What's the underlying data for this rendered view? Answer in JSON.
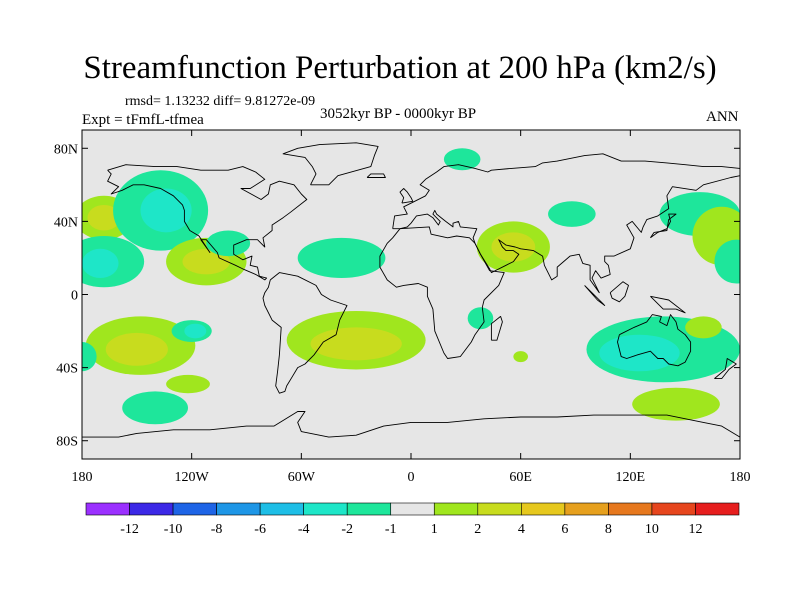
{
  "title": "Streamfunction Perturbation at 200 hPa (km2/s)",
  "stats": "rmsd= 1.13232 diff= 9.81272e-09",
  "period": "3052kyr BP - 0000kyr BP",
  "experiment": "Expt = tFmfL-tfmea",
  "season": "ANN",
  "map": {
    "lon_range": [
      -180,
      180
    ],
    "lat_range": [
      -90,
      90
    ],
    "x_ticks": [
      {
        "lon": -180,
        "label": "180"
      },
      {
        "lon": -120,
        "label": "120W"
      },
      {
        "lon": -60,
        "label": "60W"
      },
      {
        "lon": 0,
        "label": "0"
      },
      {
        "lon": 60,
        "label": "60E"
      },
      {
        "lon": 120,
        "label": "120E"
      },
      {
        "lon": 180,
        "label": "180"
      }
    ],
    "y_ticks": [
      {
        "lat": 80,
        "label": "80N"
      },
      {
        "lat": 40,
        "label": "40N"
      },
      {
        "lat": 0,
        "label": "0"
      },
      {
        "lat": -40,
        "label": "40S"
      },
      {
        "lat": -80,
        "label": "80S"
      }
    ],
    "background_color": "#e6e6e6"
  },
  "colorbar": {
    "colors": [
      "#9b30ff",
      "#3c28e6",
      "#1e64e6",
      "#1e96e6",
      "#1ebee6",
      "#1ee6c8",
      "#1ee69b",
      "#e6e6e6",
      "#a0e61e",
      "#c8dc1e",
      "#e6c81e",
      "#e6a01e",
      "#e6781e",
      "#e6461e",
      "#e61e1e"
    ],
    "labels": [
      "-12",
      "-10",
      "-8",
      "-6",
      "-4",
      "-2",
      "-1",
      "1",
      "2",
      "4",
      "6",
      "8",
      "10",
      "12"
    ]
  },
  "anomalies": [
    {
      "name": "pos-npac-west",
      "lon": -168,
      "lat": 42,
      "rx": 16,
      "ry": 12,
      "level": 2
    },
    {
      "name": "pos-npac-west-core",
      "lon": -168,
      "lat": 42,
      "rx": 9,
      "ry": 7,
      "level": 4
    },
    {
      "name": "neg-npac-center",
      "lon": -137,
      "lat": 46,
      "rx": 26,
      "ry": 22,
      "level": -1
    },
    {
      "name": "neg-npac-center-core",
      "lon": -134,
      "lat": 46,
      "rx": 14,
      "ry": 12,
      "level": -2
    },
    {
      "name": "neg-trop-pac",
      "lon": -168,
      "lat": 18,
      "rx": 22,
      "ry": 14,
      "level": -1
    },
    {
      "name": "neg-trop-pac-core",
      "lon": -170,
      "lat": 17,
      "rx": 10,
      "ry": 8,
      "level": -2
    },
    {
      "name": "pos-mexico",
      "lon": -112,
      "lat": 18,
      "rx": 22,
      "ry": 13,
      "level": 2
    },
    {
      "name": "pos-mexico-core",
      "lon": -112,
      "lat": 18,
      "rx": 13,
      "ry": 7,
      "level": 4
    },
    {
      "name": "neg-mexico",
      "lon": -100,
      "lat": 28,
      "rx": 12,
      "ry": 7,
      "level": -1
    },
    {
      "name": "neg-atlantic",
      "lon": -38,
      "lat": 20,
      "rx": 24,
      "ry": 11,
      "level": -1
    },
    {
      "name": "pos-spac",
      "lon": -148,
      "lat": -28,
      "rx": 30,
      "ry": 16,
      "level": 2
    },
    {
      "name": "pos-spac-core",
      "lon": -150,
      "lat": -30,
      "rx": 17,
      "ry": 9,
      "level": 4
    },
    {
      "name": "neg-spac-small",
      "lon": -120,
      "lat": -20,
      "rx": 11,
      "ry": 6,
      "level": -1
    },
    {
      "name": "neg-spac-small-core",
      "lon": -118,
      "lat": -20,
      "rx": 6,
      "ry": 4,
      "level": -2
    },
    {
      "name": "neg-far-spac",
      "lon": -180,
      "lat": -34,
      "rx": 8,
      "ry": 8,
      "level": -1
    },
    {
      "name": "neg-s-pac-low",
      "lon": -140,
      "lat": -62,
      "rx": 18,
      "ry": 9,
      "level": -1
    },
    {
      "name": "pos-s-pac-low",
      "lon": -122,
      "lat": -49,
      "rx": 12,
      "ry": 5,
      "level": 2
    },
    {
      "name": "pos-satl",
      "lon": -30,
      "lat": -25,
      "rx": 38,
      "ry": 16,
      "level": 2
    },
    {
      "name": "pos-satl-core",
      "lon": -30,
      "lat": -27,
      "rx": 25,
      "ry": 9,
      "level": 4
    },
    {
      "name": "neg-arctic-small",
      "lon": 28,
      "lat": 74,
      "rx": 10,
      "ry": 6,
      "level": -1
    },
    {
      "name": "pos-mideast",
      "lon": 56,
      "lat": 26,
      "rx": 20,
      "ry": 14,
      "level": 2
    },
    {
      "name": "pos-mideast-core",
      "lon": 56,
      "lat": 26,
      "rx": 12,
      "ry": 8,
      "level": 4
    },
    {
      "name": "neg-siberia",
      "lon": 88,
      "lat": 44,
      "rx": 13,
      "ry": 7,
      "level": -1
    },
    {
      "name": "neg-madagascar",
      "lon": 38,
      "lat": -13,
      "rx": 7,
      "ry": 6,
      "level": -1
    },
    {
      "name": "pos-s-indian",
      "lon": 60,
      "lat": -34,
      "rx": 4,
      "ry": 3,
      "level": 2
    },
    {
      "name": "neg-nwpac",
      "lon": 158,
      "lat": 44,
      "rx": 22,
      "ry": 12,
      "level": -1
    },
    {
      "name": "pos-nepac",
      "lon": 170,
      "lat": 32,
      "rx": 16,
      "ry": 16,
      "level": 2
    },
    {
      "name": "neg-enpac",
      "lon": 178,
      "lat": 18,
      "rx": 12,
      "ry": 12,
      "level": -1
    },
    {
      "name": "neg-aus",
      "lon": 138,
      "lat": -30,
      "rx": 42,
      "ry": 18,
      "level": -1
    },
    {
      "name": "neg-aus-core",
      "lon": 125,
      "lat": -32,
      "rx": 22,
      "ry": 10,
      "level": -2
    },
    {
      "name": "pos-aus-south",
      "lon": 145,
      "lat": -60,
      "rx": 24,
      "ry": 9,
      "level": 2
    },
    {
      "name": "pos-aus-ne",
      "lon": 160,
      "lat": -18,
      "rx": 10,
      "ry": 6,
      "level": 2
    }
  ],
  "coastlines": {
    "north-america": [
      [
        -166,
        68
      ],
      [
        -156,
        71
      ],
      [
        -140,
        70
      ],
      [
        -128,
        70
      ],
      [
        -115,
        68
      ],
      [
        -100,
        68
      ],
      [
        -92,
        70
      ],
      [
        -85,
        67
      ],
      [
        -80,
        63
      ],
      [
        -88,
        58
      ],
      [
        -93,
        58
      ],
      [
        -82,
        52
      ],
      [
        -78,
        55
      ],
      [
        -77,
        60
      ],
      [
        -72,
        62
      ],
      [
        -64,
        60
      ],
      [
        -60,
        55
      ],
      [
        -57,
        52
      ],
      [
        -66,
        45
      ],
      [
        -70,
        42
      ],
      [
        -76,
        38
      ],
      [
        -76,
        35
      ],
      [
        -81,
        31
      ],
      [
        -80,
        26
      ],
      [
        -82,
        28
      ],
      [
        -84,
        30
      ],
      [
        -90,
        30
      ],
      [
        -97,
        27
      ],
      [
        -97,
        22
      ],
      [
        -92,
        19
      ],
      [
        -87,
        21
      ],
      [
        -88,
        16
      ],
      [
        -84,
        15
      ],
      [
        -83,
        10
      ],
      [
        -79,
        9
      ],
      [
        -80,
        8
      ],
      [
        -85,
        11
      ],
      [
        -92,
        14
      ],
      [
        -96,
        16
      ],
      [
        -105,
        20
      ],
      [
        -106,
        23
      ],
      [
        -112,
        30
      ],
      [
        -115,
        30
      ],
      [
        -110,
        23
      ],
      [
        -116,
        32
      ],
      [
        -121,
        35
      ],
      [
        -124,
        40
      ],
      [
        -124,
        46
      ],
      [
        -125,
        49
      ],
      [
        -130,
        54
      ],
      [
        -137,
        58
      ],
      [
        -146,
        60
      ],
      [
        -152,
        60
      ],
      [
        -158,
        57
      ],
      [
        -164,
        55
      ],
      [
        -160,
        59
      ],
      [
        -166,
        62
      ],
      [
        -164,
        66
      ],
      [
        -166,
        68
      ]
    ],
    "south-america": [
      [
        -77,
        8
      ],
      [
        -72,
        12
      ],
      [
        -62,
        10
      ],
      [
        -52,
        5
      ],
      [
        -49,
        0
      ],
      [
        -44,
        -3
      ],
      [
        -35,
        -6
      ],
      [
        -39,
        -14
      ],
      [
        -41,
        -22
      ],
      [
        -48,
        -26
      ],
      [
        -53,
        -33
      ],
      [
        -58,
        -38
      ],
      [
        -62,
        -40
      ],
      [
        -65,
        -45
      ],
      [
        -68,
        -50
      ],
      [
        -69,
        -53
      ],
      [
        -72,
        -54
      ],
      [
        -74,
        -50
      ],
      [
        -73,
        -42
      ],
      [
        -72,
        -33
      ],
      [
        -71,
        -18
      ],
      [
        -76,
        -14
      ],
      [
        -80,
        -6
      ],
      [
        -81,
        -2
      ],
      [
        -80,
        1
      ],
      [
        -78,
        4
      ],
      [
        -77,
        8
      ]
    ],
    "greenland": [
      [
        -55,
        60
      ],
      [
        -45,
        60
      ],
      [
        -40,
        65
      ],
      [
        -22,
        70
      ],
      [
        -20,
        76
      ],
      [
        -18,
        81
      ],
      [
        -30,
        83
      ],
      [
        -50,
        82
      ],
      [
        -62,
        80
      ],
      [
        -70,
        77
      ],
      [
        -58,
        75
      ],
      [
        -54,
        70
      ],
      [
        -52,
        66
      ],
      [
        -55,
        60
      ]
    ],
    "eurasia": [
      [
        -10,
        36
      ],
      [
        -9,
        43
      ],
      [
        -2,
        44
      ],
      [
        -4,
        48
      ],
      [
        2,
        51
      ],
      [
        8,
        54
      ],
      [
        10,
        57
      ],
      [
        5,
        60
      ],
      [
        8,
        63
      ],
      [
        14,
        67
      ],
      [
        18,
        70
      ],
      [
        26,
        71
      ],
      [
        35,
        69
      ],
      [
        42,
        67
      ],
      [
        44,
        68
      ],
      [
        55,
        69
      ],
      [
        68,
        70
      ],
      [
        72,
        72
      ],
      [
        80,
        73
      ],
      [
        95,
        76
      ],
      [
        105,
        77
      ],
      [
        115,
        73
      ],
      [
        128,
        73
      ],
      [
        140,
        72
      ],
      [
        150,
        71
      ],
      [
        160,
        70
      ],
      [
        170,
        70
      ],
      [
        180,
        69
      ],
      [
        180,
        65
      ],
      [
        175,
        64
      ],
      [
        160,
        60
      ],
      [
        156,
        57
      ],
      [
        143,
        59
      ],
      [
        140,
        54
      ],
      [
        141,
        47
      ],
      [
        135,
        43
      ],
      [
        129,
        41
      ],
      [
        127,
        37
      ],
      [
        126,
        34
      ],
      [
        121,
        40
      ],
      [
        118,
        38
      ],
      [
        122,
        31
      ],
      [
        120,
        25
      ],
      [
        111,
        21
      ],
      [
        106,
        21
      ],
      [
        106,
        18
      ],
      [
        108,
        16
      ],
      [
        109,
        11
      ],
      [
        104,
        9
      ],
      [
        101,
        13
      ],
      [
        99,
        9
      ],
      [
        103,
        1
      ],
      [
        98,
        8
      ],
      [
        98,
        16
      ],
      [
        94,
        17
      ],
      [
        92,
        22
      ],
      [
        87,
        21
      ],
      [
        80,
        15
      ],
      [
        80,
        10
      ],
      [
        77,
        8
      ],
      [
        73,
        16
      ],
      [
        72,
        21
      ],
      [
        67,
        24
      ],
      [
        60,
        25
      ],
      [
        57,
        26
      ],
      [
        52,
        27
      ],
      [
        48,
        30
      ],
      [
        50,
        26
      ],
      [
        52,
        24
      ],
      [
        56,
        24
      ],
      [
        59,
        22
      ],
      [
        56,
        18
      ],
      [
        52,
        16
      ],
      [
        44,
        12
      ],
      [
        43,
        14
      ],
      [
        38,
        22
      ],
      [
        35,
        28
      ],
      [
        34,
        31
      ],
      [
        36,
        36
      ],
      [
        27,
        37
      ],
      [
        26,
        40
      ],
      [
        23,
        39
      ],
      [
        23,
        37
      ],
      [
        19,
        40
      ],
      [
        14,
        44
      ],
      [
        13,
        46
      ],
      [
        12,
        44
      ],
      [
        16,
        40
      ],
      [
        15,
        38
      ],
      [
        12,
        42
      ],
      [
        9,
        44
      ],
      [
        3,
        43
      ],
      [
        0,
        39
      ],
      [
        -2,
        37
      ],
      [
        -6,
        36
      ],
      [
        -10,
        36
      ]
    ],
    "africa": [
      [
        -6,
        36
      ],
      [
        10,
        37
      ],
      [
        11,
        33
      ],
      [
        20,
        31
      ],
      [
        25,
        32
      ],
      [
        32,
        31
      ],
      [
        35,
        28
      ],
      [
        38,
        22
      ],
      [
        43,
        13
      ],
      [
        51,
        12
      ],
      [
        48,
        5
      ],
      [
        40,
        -3
      ],
      [
        39,
        -7
      ],
      [
        40,
        -15
      ],
      [
        35,
        -22
      ],
      [
        33,
        -26
      ],
      [
        27,
        -34
      ],
      [
        20,
        -35
      ],
      [
        18,
        -32
      ],
      [
        13,
        -20
      ],
      [
        12,
        -8
      ],
      [
        9,
        -1
      ],
      [
        9,
        4
      ],
      [
        4,
        6
      ],
      [
        -4,
        5
      ],
      [
        -8,
        4
      ],
      [
        -13,
        8
      ],
      [
        -17,
        15
      ],
      [
        -17,
        21
      ],
      [
        -13,
        28
      ],
      [
        -10,
        31
      ],
      [
        -6,
        36
      ]
    ],
    "australia": [
      [
        114,
        -22
      ],
      [
        122,
        -18
      ],
      [
        129,
        -15
      ],
      [
        132,
        -11
      ],
      [
        137,
        -12
      ],
      [
        136,
        -15
      ],
      [
        140,
        -17
      ],
      [
        142,
        -11
      ],
      [
        145,
        -15
      ],
      [
        146,
        -19
      ],
      [
        150,
        -22
      ],
      [
        153,
        -26
      ],
      [
        153,
        -31
      ],
      [
        150,
        -37
      ],
      [
        146,
        -39
      ],
      [
        141,
        -38
      ],
      [
        138,
        -35
      ],
      [
        135,
        -35
      ],
      [
        131,
        -31
      ],
      [
        124,
        -33
      ],
      [
        118,
        -35
      ],
      [
        115,
        -34
      ],
      [
        113,
        -26
      ],
      [
        114,
        -22
      ]
    ],
    "antarctica": [
      [
        -180,
        -78
      ],
      [
        -160,
        -78
      ],
      [
        -150,
        -76
      ],
      [
        -130,
        -74
      ],
      [
        -110,
        -74
      ],
      [
        -90,
        -72
      ],
      [
        -75,
        -72
      ],
      [
        -62,
        -64
      ],
      [
        -58,
        -64
      ],
      [
        -62,
        -70
      ],
      [
        -60,
        -75
      ],
      [
        -45,
        -78
      ],
      [
        -30,
        -77
      ],
      [
        -15,
        -72
      ],
      [
        0,
        -70
      ],
      [
        20,
        -70
      ],
      [
        40,
        -68
      ],
      [
        60,
        -67
      ],
      [
        80,
        -67
      ],
      [
        100,
        -66
      ],
      [
        120,
        -66
      ],
      [
        140,
        -66
      ],
      [
        160,
        -70
      ],
      [
        170,
        -72
      ],
      [
        180,
        -78
      ]
    ],
    "uk": [
      [
        -5,
        50
      ],
      [
        1,
        51
      ],
      [
        0,
        53
      ],
      [
        -2,
        56
      ],
      [
        -4,
        58
      ],
      [
        -6,
        56
      ],
      [
        -4,
        53
      ],
      [
        -5,
        50
      ]
    ],
    "madagascar": [
      [
        44,
        -25
      ],
      [
        47,
        -25
      ],
      [
        50,
        -15
      ],
      [
        49,
        -12
      ],
      [
        44,
        -16
      ],
      [
        44,
        -25
      ]
    ],
    "japan": [
      [
        131,
        31
      ],
      [
        135,
        34
      ],
      [
        140,
        36
      ],
      [
        142,
        40
      ],
      [
        141,
        44
      ],
      [
        145,
        44
      ],
      [
        141,
        41
      ],
      [
        140,
        35
      ],
      [
        133,
        34
      ],
      [
        131,
        31
      ]
    ],
    "indonesia": [
      [
        95,
        5
      ],
      [
        105,
        -5
      ],
      [
        106,
        -6
      ],
      [
        102,
        -3
      ],
      [
        95,
        5
      ]
    ],
    "borneo": [
      [
        109,
        1
      ],
      [
        116,
        7
      ],
      [
        119,
        5
      ],
      [
        117,
        -1
      ],
      [
        114,
        -4
      ],
      [
        110,
        -2
      ],
      [
        109,
        1
      ]
    ],
    "new-guinea": [
      [
        131,
        -1
      ],
      [
        141,
        -3
      ],
      [
        150,
        -10
      ],
      [
        145,
        -8
      ],
      [
        138,
        -8
      ],
      [
        131,
        -1
      ]
    ],
    "new-zealand": [
      [
        166,
        -46
      ],
      [
        170,
        -46
      ],
      [
        174,
        -41
      ],
      [
        178,
        -38
      ],
      [
        173,
        -35
      ],
      [
        172,
        -41
      ],
      [
        166,
        -46
      ]
    ],
    "iceland": [
      [
        -24,
        64
      ],
      [
        -14,
        64
      ],
      [
        -15,
        66
      ],
      [
        -22,
        66
      ],
      [
        -24,
        64
      ]
    ]
  }
}
